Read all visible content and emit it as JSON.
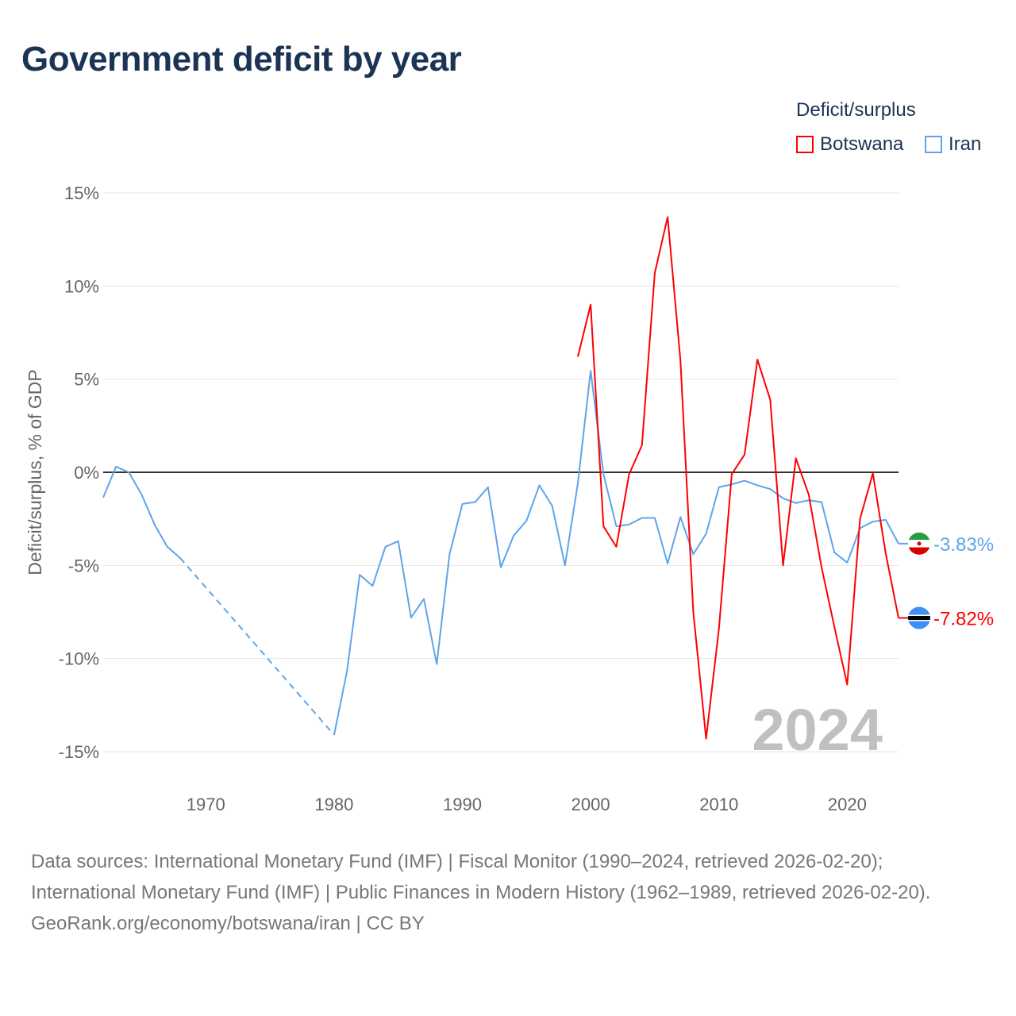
{
  "title": "Government deficit by year",
  "legend": {
    "title": "Deficit/surplus",
    "items": [
      {
        "name": "Botswana",
        "color": "#ff0000"
      },
      {
        "name": "Iran",
        "color": "#5da5ea"
      }
    ]
  },
  "chart_data": {
    "type": "line",
    "title": "Government deficit by year",
    "xlabel": "",
    "ylabel": "Deficit/surplus, % of GDP",
    "xlim": [
      1962,
      2024
    ],
    "ylim": [
      -15,
      15
    ],
    "yticks": [
      15,
      10,
      5,
      0,
      -5,
      -10,
      -15
    ],
    "ytick_labels": [
      "15%",
      "10%",
      "5%",
      "0%",
      "-5%",
      "-10%",
      "-15%"
    ],
    "xticks": [
      1970,
      1980,
      1990,
      2000,
      2010,
      2020
    ],
    "xtick_labels": [
      "1970",
      "1980",
      "1990",
      "2000",
      "2010",
      "2020"
    ],
    "grid": true,
    "legend_position": "top-right",
    "year_label": "2024",
    "series": [
      {
        "name": "Botswana",
        "color": "#ff0000",
        "end_label": "-7.82%",
        "x": [
          1999,
          2000,
          2001,
          2002,
          2003,
          2004,
          2005,
          2006,
          2007,
          2008,
          2009,
          2010,
          2011,
          2012,
          2013,
          2014,
          2015,
          2016,
          2017,
          2018,
          2019,
          2020,
          2021,
          2022,
          2023,
          2024
        ],
        "values": [
          6.2,
          9.0,
          -2.9,
          -4.0,
          -0.1,
          1.45,
          10.7,
          13.7,
          6.0,
          -7.5,
          -14.3,
          -8.4,
          -0.1,
          0.95,
          6.05,
          3.9,
          -5.0,
          0.75,
          -1.2,
          -5.1,
          -8.3,
          -11.4,
          -2.5,
          -0.05,
          -4.35,
          -7.82
        ]
      },
      {
        "name": "Iran",
        "color": "#5da5ea",
        "end_label": "-3.83%",
        "x": [
          1962,
          1963,
          1964,
          1965,
          1966,
          1967,
          1968,
          1980,
          1981,
          1982,
          1983,
          1984,
          1985,
          1986,
          1987,
          1988,
          1989,
          1990,
          1991,
          1992,
          1993,
          1994,
          1995,
          1996,
          1997,
          1998,
          1999,
          2000,
          2001,
          2002,
          2003,
          2004,
          2005,
          2006,
          2007,
          2008,
          2009,
          2010,
          2011,
          2012,
          2013,
          2014,
          2015,
          2016,
          2017,
          2018,
          2019,
          2020,
          2021,
          2022,
          2023,
          2024
        ],
        "values": [
          -1.36,
          0.3,
          0,
          -1.2,
          -2.8,
          -4.0,
          -4.6,
          -14.1,
          -10.7,
          -5.5,
          -6.1,
          -4.0,
          -3.7,
          -7.8,
          -6.8,
          -10.3,
          -4.4,
          -1.7,
          -1.6,
          -0.8,
          -5.1,
          -3.4,
          -2.6,
          -0.7,
          -1.8,
          -5.0,
          -0.6,
          5.45,
          -0.1,
          -2.9,
          -2.8,
          -2.45,
          -2.45,
          -4.9,
          -2.4,
          -4.4,
          -3.3,
          -0.8,
          -0.65,
          -0.45,
          -0.7,
          -0.9,
          -1.4,
          -1.65,
          -1.5,
          -1.6,
          -4.3,
          -4.85,
          -3.0,
          -2.65,
          -2.55,
          -3.83
        ],
        "gap_after": 1968
      }
    ]
  },
  "footer": {
    "sources": "Data sources: International Monetary Fund (IMF) | Fiscal Monitor (1990–2024, retrieved 2026-02-20); International Monetary Fund (IMF) | Public Finances in Modern History (1962–1989, retrieved 2026-02-20).",
    "credit": "GeoRank.org/economy/botswana/iran | CC BY"
  }
}
